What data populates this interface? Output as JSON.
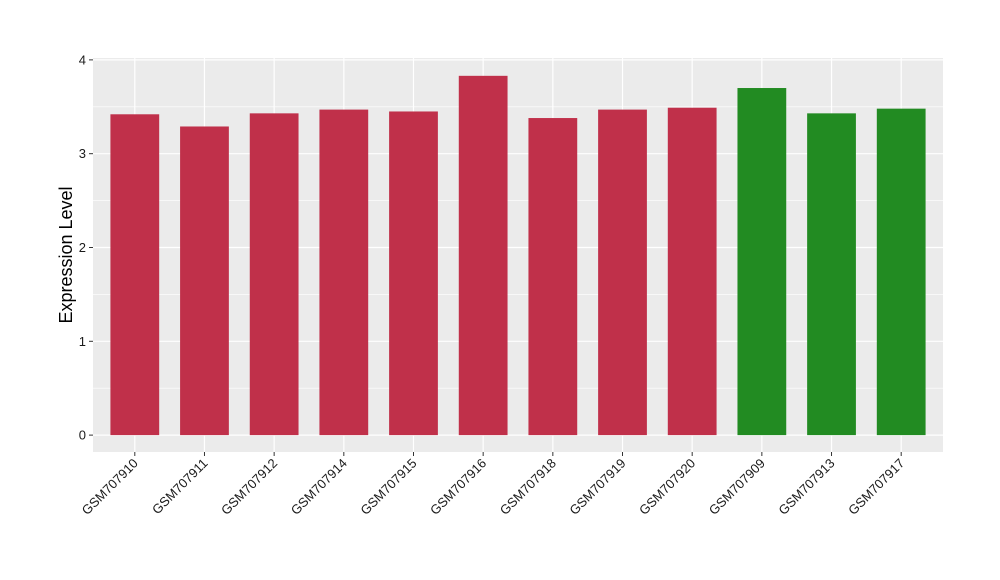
{
  "chart_data": {
    "type": "bar",
    "title": "",
    "xlabel": "",
    "ylabel": "Expression Level",
    "categories": [
      "GSM707910",
      "GSM707911",
      "GSM707912",
      "GSM707914",
      "GSM707915",
      "GSM707916",
      "GSM707918",
      "GSM707919",
      "GSM707920",
      "GSM707909",
      "GSM707913",
      "GSM707917"
    ],
    "values": [
      3.42,
      3.29,
      3.43,
      3.47,
      3.45,
      3.83,
      3.38,
      3.47,
      3.49,
      3.7,
      3.43,
      3.48
    ],
    "bar_colors": [
      "#c0304a",
      "#c0304a",
      "#c0304a",
      "#c0304a",
      "#c0304a",
      "#c0304a",
      "#c0304a",
      "#c0304a",
      "#c0304a",
      "#228b22",
      "#228b22",
      "#228b22"
    ],
    "ylim": [
      -0.18,
      4.02
    ],
    "yticks": [
      0,
      1,
      2,
      3,
      4
    ],
    "grid": true,
    "legend": "none",
    "panel_background": "#ebebeb",
    "gridline_color": "#ffffff"
  }
}
